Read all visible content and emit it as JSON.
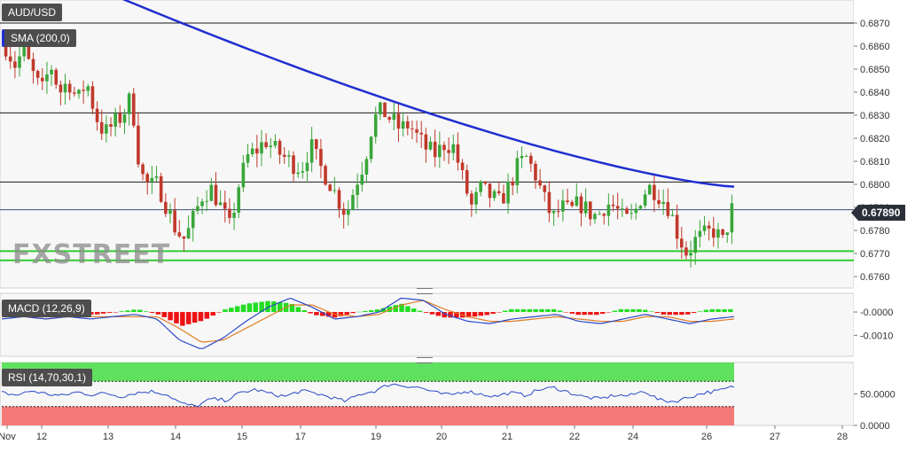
{
  "symbol": "AUD/USD",
  "watermark": "FXSTREET",
  "colors": {
    "panel_bg": "#f7f7f7",
    "sma": "#1f2fd0",
    "bull": "#3aa63a",
    "bear": "#c0392b",
    "level_green": "#2ecc2e",
    "macd_line": "#2a48c8",
    "signal_line": "#e07b22",
    "hist_pos": "#22dd22",
    "hist_neg": "#ee1111",
    "rsi_over": "#5fe05f",
    "rsi_under": "#f57878",
    "price_tag": "#2b2f3a"
  },
  "chart_data": [
    {
      "type": "candlestick",
      "title": "AUD/USD",
      "x_labels": [
        "Nov",
        "12",
        "13",
        "14",
        "15",
        "17",
        "19",
        "20",
        "21",
        "22",
        "24",
        "26",
        "27",
        "28"
      ],
      "ylim": [
        0.6755,
        0.688
      ],
      "y_ticks": [
        "0.6760",
        "0.6770",
        "0.6780",
        "0.6790",
        "0.6800",
        "0.6810",
        "0.6820",
        "0.6830",
        "0.6840",
        "0.6850",
        "0.6860",
        "0.6870"
      ],
      "last_price": "0.67890",
      "indicator": {
        "name": "SMA (200,0)",
        "start": 0.6885,
        "end": 0.6799
      },
      "horizontal_levels": [
        0.687,
        0.6831,
        0.6801,
        0.6789
      ],
      "support_levels": [
        0.6771,
        0.6767
      ],
      "close_path": [
        0.686,
        0.6852,
        0.6858,
        0.6848,
        0.684,
        0.6852,
        0.684,
        0.6845,
        0.6836,
        0.6845,
        0.683,
        0.6822,
        0.6826,
        0.683,
        0.6838,
        0.6805,
        0.6799,
        0.68,
        0.679,
        0.678,
        0.6776,
        0.6786,
        0.6796,
        0.6798,
        0.679,
        0.6781,
        0.68,
        0.6812,
        0.6815,
        0.6819,
        0.6815,
        0.6812,
        0.6809,
        0.6807,
        0.6817,
        0.6808,
        0.6802,
        0.6794,
        0.6787,
        0.68,
        0.681,
        0.6828,
        0.6832,
        0.6828,
        0.6824,
        0.6826,
        0.682,
        0.6815,
        0.6813,
        0.6818,
        0.6816,
        0.6802,
        0.679,
        0.6798,
        0.6795,
        0.6792,
        0.6798,
        0.6807,
        0.6812,
        0.6805,
        0.6794,
        0.6785,
        0.679,
        0.6788,
        0.6792,
        0.6788,
        0.6786,
        0.6792,
        0.679,
        0.6784,
        0.6786,
        0.6796,
        0.6799,
        0.6795,
        0.679,
        0.6778,
        0.677,
        0.6776,
        0.6778,
        0.678,
        0.6775,
        0.6789
      ]
    },
    {
      "type": "macd",
      "title": "MACD (12,26,9)",
      "y_ticks": [
        "-0.0000",
        "-0.0010"
      ],
      "ylim": [
        -0.0019,
        0.0008
      ],
      "macd_path": [
        -0.0003,
        -0.0002,
        -0.0003,
        -0.0002,
        -0.0003,
        -0.0002,
        -0.0001,
        -0.0003,
        -0.0012,
        -0.0016,
        -0.0011,
        -0.0004,
        0.0002,
        0.0006,
        0.0002,
        -0.0003,
        -0.0002,
        0.0,
        0.0006,
        0.0005,
        -0.0001,
        -0.0004,
        -0.0005,
        -0.0003,
        -0.0002,
        -0.0001,
        -0.0004,
        -0.0005,
        -0.0003,
        -0.0001,
        -0.0003,
        -0.0005,
        -0.0003,
        -0.0002
      ],
      "signal_path": [
        -0.0002,
        -0.0002,
        -0.0003,
        -0.0002,
        -0.0002,
        -0.0002,
        -0.0002,
        -0.0002,
        -0.0007,
        -0.0013,
        -0.0012,
        -0.0007,
        -0.0002,
        0.0003,
        0.0003,
        -0.0001,
        -0.0002,
        -0.0001,
        0.0003,
        0.0005,
        0.0001,
        -0.0002,
        -0.0004,
        -0.0004,
        -0.0003,
        -0.0002,
        -0.0003,
        -0.0004,
        -0.0004,
        -0.0002,
        -0.0002,
        -0.0004,
        -0.0004,
        -0.0003
      ]
    },
    {
      "type": "rsi",
      "title": "RSI (14,70,30,1)",
      "y_ticks": [
        "50.0000",
        "0.0000"
      ],
      "ylim": [
        0,
        100
      ],
      "upper": 70,
      "lower": 30,
      "rsi_path": [
        52,
        48,
        55,
        50,
        47,
        53,
        49,
        51,
        46,
        52,
        54,
        50,
        35,
        30,
        42,
        40,
        52,
        57,
        50,
        46,
        55,
        51,
        45,
        38,
        50,
        55,
        66,
        63,
        60,
        52,
        48,
        55,
        50,
        46,
        52,
        48,
        57,
        60,
        52,
        45,
        42,
        48,
        47,
        55,
        40,
        38,
        45,
        52,
        55,
        62
      ]
    }
  ]
}
